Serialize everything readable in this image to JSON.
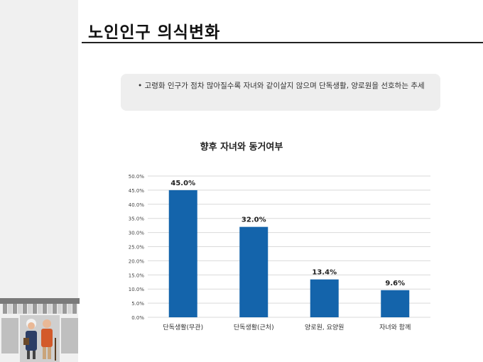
{
  "slide": {
    "title": "노인인구 의식변화",
    "summary": "• 고령화 인구가 점차 많아질수록 자녀와 같이살지 않으며 단독생활, 양로원을 선호하는 추세"
  },
  "chart_data": {
    "type": "bar",
    "title": "향후 자녀와 동거여부",
    "categories": [
      "단독생활(무관)",
      "단독생활(근처)",
      "양로원, 요양원",
      "자녀와 함께"
    ],
    "values": [
      45.0,
      32.0,
      13.4,
      9.6
    ],
    "value_labels": [
      "45.0%",
      "32.0%",
      "13.4%",
      "9.6%"
    ],
    "y_ticks": [
      "0.0%",
      "5.0%",
      "10.0%",
      "15.0%",
      "20.0%",
      "25.0%",
      "30.0%",
      "35.0%",
      "40.0%",
      "45.0%",
      "50.0%"
    ],
    "ylim": [
      0,
      50
    ],
    "grid": true,
    "bar_color": "#1464ab",
    "xlabel": "",
    "ylabel": ""
  },
  "colors": {
    "left_band": "#f0f0f0",
    "summary_box": "#eeeeee",
    "grid": "#d9d9d9"
  },
  "decoration": {
    "illustration": "elderly-couple-shopfront-icon"
  }
}
